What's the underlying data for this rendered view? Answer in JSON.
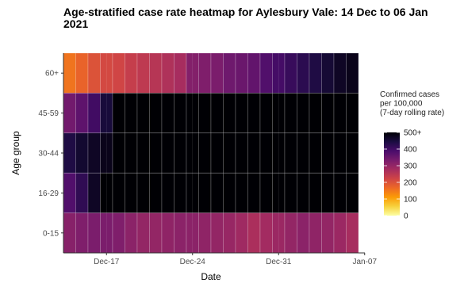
{
  "chart_data": {
    "type": "heatmap",
    "title": "Age-stratified case rate heatmap for Aylesbury Vale: 14 Dec to 06 Jan 2021",
    "xlabel": "Date",
    "ylabel": "Age group",
    "x_start": "2020-12-14",
    "x_end": "2021-01-06",
    "x_ticks": [
      {
        "label": "Dec-17",
        "date": "2020-12-17"
      },
      {
        "label": "Dec-24",
        "date": "2020-12-24"
      },
      {
        "label": "Dec-31",
        "date": "2020-12-31"
      },
      {
        "label": "Jan-07",
        "date": "2021-01-07"
      }
    ],
    "age_groups": [
      "60+",
      "45-59",
      "30-44",
      "16-29",
      "0-15"
    ],
    "values": {
      "60+": [
        155,
        175,
        200,
        215,
        220,
        235,
        245,
        255,
        265,
        275,
        320,
        325,
        330,
        345,
        350,
        360,
        380,
        395,
        410,
        425,
        440,
        455,
        470,
        480
      ],
      "45-59": [
        340,
        365,
        400,
        450,
        520,
        560,
        580,
        600,
        620,
        640,
        650,
        660,
        670,
        680,
        690,
        700,
        700,
        700,
        700,
        700,
        700,
        700,
        700,
        700
      ],
      "30-44": [
        440,
        460,
        470,
        480,
        520,
        580,
        600,
        620,
        640,
        660,
        680,
        690,
        700,
        700,
        700,
        700,
        700,
        700,
        700,
        700,
        700,
        700,
        700,
        700
      ],
      "16-29": [
        380,
        420,
        470,
        520,
        560,
        600,
        620,
        640,
        660,
        680,
        690,
        700,
        700,
        700,
        700,
        700,
        700,
        700,
        700,
        700,
        700,
        700,
        700,
        700
      ],
      "0-15": [
        315,
        325,
        330,
        330,
        325,
        310,
        300,
        300,
        305,
        310,
        310,
        305,
        300,
        295,
        285,
        270,
        280,
        290,
        300,
        310,
        305,
        300,
        290,
        275
      ]
    },
    "color_scale": {
      "name": "inferno",
      "min": 0,
      "max": 500,
      "ticks": [
        0,
        100,
        200,
        300,
        400,
        500
      ],
      "tick_labels": [
        "0",
        "100",
        "200",
        "300",
        "400",
        "500+"
      ],
      "title_lines": [
        "Confirmed cases",
        "per 100,000",
        "(7-day rolling rate)"
      ],
      "stops": [
        "#fcffa4",
        "#f7d13d",
        "#fb9b06",
        "#ed6925",
        "#cf4446",
        "#a52c60",
        "#781c6d",
        "#4a0c6b",
        "#1b0c41",
        "#000004"
      ]
    },
    "grid": true,
    "legend_position": "right"
  }
}
